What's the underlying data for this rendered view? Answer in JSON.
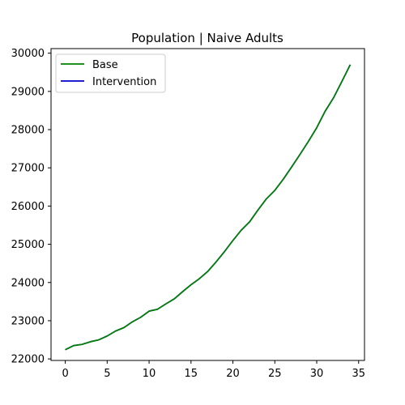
{
  "chart_data": {
    "type": "line",
    "title": "Population | Naive Adults",
    "xlabel": "",
    "ylabel": "",
    "xlim": [
      -1.7,
      35.7
    ],
    "ylim": [
      21960,
      30120
    ],
    "x_ticks": [
      0,
      5,
      10,
      15,
      20,
      25,
      30,
      35
    ],
    "y_ticks": [
      22000,
      23000,
      24000,
      25000,
      26000,
      27000,
      28000,
      29000,
      30000
    ],
    "grid": false,
    "legend_position": "top-left",
    "x": [
      0,
      1,
      2,
      3,
      4,
      5,
      6,
      7,
      8,
      9,
      10,
      11,
      12,
      13,
      14,
      15,
      16,
      17,
      18,
      19,
      20,
      21,
      22,
      23,
      24,
      25,
      26,
      27,
      28,
      29,
      30,
      31,
      32,
      33,
      34
    ],
    "series": [
      {
        "name": "Intervention",
        "color": "#0000cc",
        "values": [
          22240,
          22350,
          22380,
          22450,
          22500,
          22600,
          22730,
          22820,
          22970,
          23090,
          23250,
          23300,
          23440,
          23570,
          23760,
          23940,
          24100,
          24290,
          24540,
          24810,
          25100,
          25370,
          25590,
          25900,
          26190,
          26410,
          26700,
          27020,
          27350,
          27690,
          28050,
          28480,
          28830,
          29260,
          29700
        ]
      },
      {
        "name": "Base",
        "color": "#008000",
        "values": [
          22240,
          22350,
          22380,
          22450,
          22500,
          22600,
          22730,
          22820,
          22970,
          23090,
          23250,
          23300,
          23440,
          23570,
          23760,
          23940,
          24100,
          24290,
          24540,
          24810,
          25100,
          25370,
          25590,
          25900,
          26190,
          26410,
          26700,
          27020,
          27350,
          27690,
          28050,
          28480,
          28830,
          29260,
          29700
        ]
      }
    ],
    "legend": [
      {
        "label": "Base",
        "color": "#008000"
      },
      {
        "label": "Intervention",
        "color": "#0000cc"
      }
    ]
  }
}
